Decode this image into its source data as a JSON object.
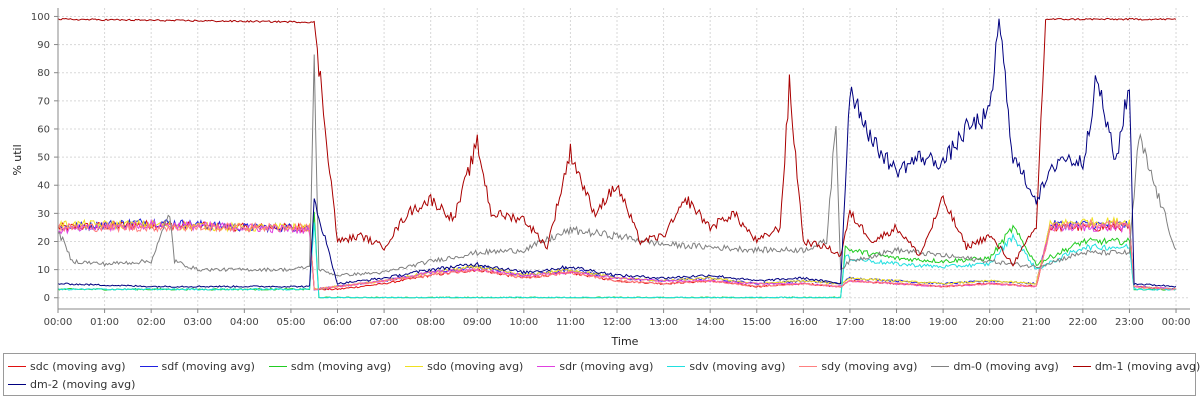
{
  "chart_data": {
    "type": "line",
    "xlabel": "Time",
    "ylabel": "% util",
    "ylim": [
      0,
      100
    ],
    "xlim": [
      "00:00",
      "24:00"
    ],
    "grid": true,
    "legend_placement": "bottom",
    "x_ticks": [
      "00:00",
      "01:00",
      "02:00",
      "03:00",
      "04:00",
      "05:00",
      "06:00",
      "07:00",
      "08:00",
      "09:00",
      "10:00",
      "11:00",
      "12:00",
      "13:00",
      "14:00",
      "15:00",
      "16:00",
      "17:00",
      "18:00",
      "19:00",
      "20:00",
      "21:00",
      "22:00",
      "23:00",
      "00:00"
    ],
    "y_ticks": [
      "0",
      "10",
      "20",
      "30",
      "40",
      "50",
      "60",
      "70",
      "80",
      "90",
      "100"
    ],
    "series": [
      {
        "name": "sdc (moving avg)",
        "color": "#e01010",
        "x": [
          0,
          2,
          4,
          5.4,
          5.5,
          6,
          7,
          8,
          9,
          10,
          11,
          12,
          13,
          14,
          15,
          16,
          16.8,
          17,
          18,
          19,
          20,
          21,
          21.3,
          22,
          23,
          23.1,
          24
        ],
        "values": [
          25,
          26,
          25,
          25,
          3,
          3,
          5,
          8,
          10,
          7,
          9,
          6,
          5,
          6,
          4,
          5,
          4,
          6,
          5,
          4,
          5,
          4,
          25,
          25,
          25,
          4,
          3
        ]
      },
      {
        "name": "sdf (moving avg)",
        "color": "#2020e0",
        "x": [
          0,
          2,
          4,
          5.4,
          5.5,
          6,
          7,
          8,
          9,
          10,
          11,
          12,
          13,
          14,
          15,
          16,
          16.8,
          17,
          18,
          19,
          20,
          21,
          21.3,
          22,
          23,
          23.1,
          24
        ],
        "values": [
          25,
          27,
          25,
          25,
          3,
          4,
          6,
          9,
          11,
          8,
          10,
          7,
          6,
          7,
          5,
          6,
          5,
          7,
          6,
          5,
          6,
          5,
          26,
          26,
          26,
          4,
          3
        ]
      },
      {
        "name": "sdm (moving avg)",
        "color": "#22cc22",
        "x": [
          0,
          2,
          4,
          5.4,
          5.5,
          5.6,
          16.8,
          16.9,
          17,
          18,
          19,
          20,
          20.5,
          21,
          22,
          23,
          23.1,
          24
        ],
        "values": [
          3,
          3,
          3,
          3,
          30,
          0,
          0,
          18,
          17,
          14,
          13,
          14,
          25,
          12,
          20,
          20,
          3,
          3
        ]
      },
      {
        "name": "sdo (moving avg)",
        "color": "#f0e020",
        "x": [
          0,
          2,
          4,
          5.4,
          5.5,
          6,
          7,
          8,
          9,
          10,
          11,
          12,
          13,
          14,
          15,
          16,
          16.8,
          17,
          18,
          19,
          20,
          21,
          21.3,
          22,
          23,
          23.1,
          24
        ],
        "values": [
          26,
          26,
          25,
          25,
          3,
          4,
          6,
          9,
          11,
          8,
          10,
          7,
          6,
          7,
          5,
          6,
          5,
          7,
          6,
          5,
          6,
          5,
          26,
          27,
          27,
          4,
          3
        ]
      },
      {
        "name": "sdr (moving avg)",
        "color": "#e040e0",
        "x": [
          0,
          2,
          4,
          5.4,
          5.5,
          6,
          7,
          8,
          9,
          10,
          11,
          12,
          13,
          14,
          15,
          16,
          16.8,
          17,
          18,
          19,
          20,
          21,
          21.3,
          22,
          23,
          23.1,
          24
        ],
        "values": [
          24,
          26,
          25,
          24,
          3,
          4,
          6,
          9,
          10,
          8,
          9,
          7,
          6,
          6,
          5,
          5,
          4,
          6,
          5,
          4,
          5,
          4,
          25,
          25,
          25,
          4,
          3
        ]
      },
      {
        "name": "sdv (moving avg)",
        "color": "#20e0e0",
        "x": [
          0,
          5.4,
          5.5,
          5.6,
          16.8,
          16.9,
          17,
          18,
          19,
          20,
          20.5,
          21,
          22,
          23,
          23.1,
          24
        ],
        "values": [
          3,
          3,
          28,
          0,
          0,
          15,
          14,
          12,
          11,
          12,
          22,
          10,
          18,
          18,
          3,
          3
        ]
      },
      {
        "name": "sdy (moving avg)",
        "color": "#ff8080",
        "x": [
          0,
          2,
          4,
          5.4,
          5.5,
          6,
          7,
          8,
          9,
          10,
          11,
          12,
          13,
          14,
          15,
          16,
          16.8,
          17,
          18,
          19,
          20,
          21,
          21.3,
          22,
          23,
          23.1,
          24
        ],
        "values": [
          25,
          25,
          25,
          25,
          3,
          4,
          6,
          8,
          10,
          7,
          9,
          6,
          5,
          6,
          4,
          5,
          4,
          6,
          5,
          4,
          5,
          4,
          25,
          26,
          26,
          4,
          3
        ]
      },
      {
        "name": "dm-0 (moving avg)",
        "color": "#808080",
        "x": [
          0,
          0.3,
          1,
          2,
          2.4,
          2.5,
          3,
          4,
          5,
          5.4,
          5.5,
          5.6,
          6,
          7,
          8,
          9,
          10,
          11,
          12,
          13,
          14,
          15,
          16,
          16.5,
          16.7,
          16.8,
          17,
          18,
          19,
          20,
          21,
          22,
          23,
          23.2,
          24
        ],
        "values": [
          24,
          13,
          12,
          13,
          30,
          13,
          10,
          10,
          10,
          11,
          83,
          10,
          8,
          9,
          13,
          16,
          17,
          24,
          22,
          19,
          18,
          17,
          17,
          20,
          63,
          10,
          13,
          17,
          15,
          13,
          11,
          16,
          16,
          57,
          17
        ]
      },
      {
        "name": "dm-1 (moving avg)",
        "color": "#aa0000",
        "x": [
          0,
          5.4,
          5.5,
          6,
          6.5,
          7,
          7.5,
          8,
          8.5,
          9,
          9.3,
          10,
          10.5,
          11,
          11.5,
          12,
          12.5,
          13,
          13.5,
          14,
          14.5,
          15,
          15.5,
          15.7,
          16,
          16.5,
          16.8,
          17,
          17.5,
          18,
          18.5,
          19,
          19.5,
          20,
          20.5,
          21,
          21.2,
          22,
          23,
          24
        ],
        "values": [
          99,
          98,
          98,
          20,
          22,
          18,
          30,
          35,
          28,
          55,
          30,
          28,
          18,
          52,
          30,
          40,
          20,
          22,
          35,
          25,
          30,
          20,
          25,
          75,
          20,
          18,
          15,
          30,
          20,
          25,
          15,
          35,
          18,
          22,
          12,
          25,
          99,
          99,
          99,
          99
        ]
      },
      {
        "name": "dm-2 (moving avg)",
        "color": "#000080",
        "x": [
          0,
          2,
          4,
          5.4,
          5.5,
          6,
          7,
          8,
          9,
          10,
          11,
          12,
          13,
          14,
          15,
          16,
          16.8,
          17,
          17.5,
          18,
          18.5,
          19,
          19.5,
          20,
          20.2,
          20.5,
          21,
          21.5,
          22,
          22.3,
          22.7,
          23,
          23.1,
          24
        ],
        "values": [
          5,
          4,
          4,
          4,
          35,
          5,
          7,
          10,
          12,
          9,
          11,
          8,
          7,
          8,
          6,
          7,
          5,
          75,
          55,
          45,
          50,
          48,
          60,
          65,
          99,
          50,
          35,
          50,
          48,
          78,
          48,
          76,
          5,
          4
        ]
      }
    ]
  }
}
